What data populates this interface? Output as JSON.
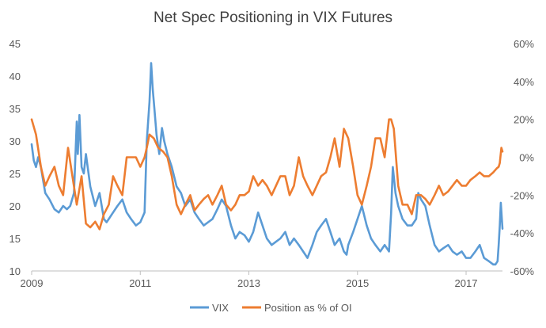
{
  "chart_data": {
    "type": "line",
    "title": "Net Spec Positioning in VIX Futures",
    "x_ticks": [
      "2009",
      "2011",
      "2013",
      "2015",
      "2017"
    ],
    "xlim": [
      2009.0,
      2017.67
    ],
    "y_left": {
      "ticks": [
        "45",
        "40",
        "35",
        "30",
        "25",
        "20",
        "15",
        "10"
      ],
      "ylim": [
        10,
        45
      ]
    },
    "y_right": {
      "ticks": [
        "60%",
        "40%",
        "20%",
        "0%",
        "-20%",
        "-40%",
        "-60%"
      ],
      "ylim": [
        -60,
        60
      ]
    },
    "grid": false,
    "legend_position": "bottom",
    "colors": {
      "VIX": "#5b9bd5",
      "Position as % of OI": "#ed7d31"
    },
    "series": [
      {
        "name": "VIX",
        "axis": "left",
        "x": [
          2009.0,
          2009.04,
          2009.08,
          2009.12,
          2009.17,
          2009.21,
          2009.25,
          2009.33,
          2009.42,
          2009.5,
          2009.58,
          2009.65,
          2009.71,
          2009.78,
          2009.83,
          2009.85,
          2009.88,
          2009.92,
          2009.96,
          2010.0,
          2010.08,
          2010.17,
          2010.25,
          2010.33,
          2010.38,
          2010.42,
          2010.5,
          2010.58,
          2010.67,
          2010.75,
          2010.83,
          2010.92,
          2011.0,
          2011.08,
          2011.12,
          2011.17,
          2011.2,
          2011.23,
          2011.26,
          2011.3,
          2011.35,
          2011.4,
          2011.44,
          2011.5,
          2011.58,
          2011.67,
          2011.75,
          2011.83,
          2011.92,
          2012.0,
          2012.08,
          2012.17,
          2012.25,
          2012.33,
          2012.42,
          2012.5,
          2012.58,
          2012.67,
          2012.75,
          2012.83,
          2012.92,
          2013.0,
          2013.08,
          2013.17,
          2013.25,
          2013.33,
          2013.42,
          2013.5,
          2013.58,
          2013.67,
          2013.75,
          2013.83,
          2013.92,
          2014.0,
          2014.08,
          2014.17,
          2014.25,
          2014.33,
          2014.42,
          2014.5,
          2014.58,
          2014.67,
          2014.75,
          2014.8,
          2014.83,
          2014.92,
          2015.0,
          2015.08,
          2015.17,
          2015.25,
          2015.33,
          2015.42,
          2015.5,
          2015.58,
          2015.62,
          2015.65,
          2015.7,
          2015.75,
          2015.83,
          2015.92,
          2016.0,
          2016.08,
          2016.12,
          2016.17,
          2016.25,
          2016.33,
          2016.42,
          2016.5,
          2016.58,
          2016.67,
          2016.75,
          2016.83,
          2016.92,
          2017.0,
          2017.08,
          2017.17,
          2017.25,
          2017.33,
          2017.42,
          2017.5,
          2017.54,
          2017.58,
          2017.6,
          2017.62,
          2017.64,
          2017.67
        ],
        "values": [
          29.5,
          27,
          26,
          27.5,
          26,
          24,
          22,
          21,
          19.5,
          19,
          20,
          19.5,
          20,
          22,
          33,
          28,
          34,
          26,
          25,
          28,
          23,
          20,
          22,
          18,
          17.5,
          18,
          19,
          20,
          21,
          19,
          18,
          17,
          17.5,
          19,
          30,
          36,
          42,
          38,
          35,
          31,
          28,
          32,
          30,
          28,
          26,
          23,
          22,
          20,
          21,
          19,
          18,
          17,
          17.5,
          18,
          19.5,
          21,
          20,
          17,
          15,
          16,
          15.5,
          14.5,
          16,
          19,
          17,
          15,
          14,
          14.5,
          15,
          16,
          14,
          15,
          14,
          13,
          12,
          14,
          16,
          17,
          18,
          16,
          14,
          15,
          13,
          12.5,
          14,
          16,
          18,
          20,
          17,
          15,
          14,
          13,
          14,
          13,
          19,
          26,
          22,
          20,
          18,
          17,
          17,
          18,
          22,
          21,
          20,
          17,
          14,
          13,
          13.5,
          14,
          13,
          12.5,
          13,
          12,
          12,
          13,
          14,
          12,
          11.5,
          11,
          11,
          11.5,
          14,
          17,
          20.5,
          16.5
        ]
      },
      {
        "name": "Position as % of OI",
        "axis": "right",
        "x": [
          2009.0,
          2009.08,
          2009.17,
          2009.25,
          2009.33,
          2009.42,
          2009.5,
          2009.58,
          2009.67,
          2009.75,
          2009.83,
          2009.92,
          2010.0,
          2010.08,
          2010.17,
          2010.25,
          2010.33,
          2010.42,
          2010.5,
          2010.58,
          2010.67,
          2010.75,
          2010.83,
          2010.92,
          2011.0,
          2011.08,
          2011.12,
          2011.17,
          2011.25,
          2011.33,
          2011.42,
          2011.5,
          2011.58,
          2011.67,
          2011.75,
          2011.83,
          2011.92,
          2012.0,
          2012.08,
          2012.17,
          2012.25,
          2012.33,
          2012.42,
          2012.5,
          2012.58,
          2012.67,
          2012.75,
          2012.83,
          2012.92,
          2013.0,
          2013.08,
          2013.17,
          2013.25,
          2013.33,
          2013.42,
          2013.5,
          2013.58,
          2013.67,
          2013.75,
          2013.83,
          2013.92,
          2014.0,
          2014.08,
          2014.17,
          2014.25,
          2014.33,
          2014.42,
          2014.5,
          2014.58,
          2014.67,
          2014.75,
          2014.83,
          2014.92,
          2015.0,
          2015.08,
          2015.17,
          2015.25,
          2015.33,
          2015.42,
          2015.5,
          2015.58,
          2015.62,
          2015.67,
          2015.75,
          2015.83,
          2015.92,
          2016.0,
          2016.08,
          2016.17,
          2016.25,
          2016.33,
          2016.42,
          2016.5,
          2016.58,
          2016.67,
          2016.75,
          2016.83,
          2016.92,
          2017.0,
          2017.08,
          2017.17,
          2017.25,
          2017.33,
          2017.42,
          2017.5,
          2017.56,
          2017.6,
          2017.62,
          2017.65,
          2017.67
        ],
        "values": [
          20,
          12,
          -5,
          -15,
          -10,
          -5,
          -15,
          -20,
          5,
          -10,
          -25,
          -10,
          -35,
          -37,
          -34,
          -38,
          -30,
          -25,
          -10,
          -15,
          -20,
          0,
          0,
          0,
          -5,
          0,
          5,
          12,
          10,
          5,
          3,
          0,
          -10,
          -25,
          -30,
          -25,
          -20,
          -28,
          -25,
          -22,
          -20,
          -25,
          -20,
          -15,
          -25,
          -28,
          -25,
          -20,
          -20,
          -18,
          -10,
          -15,
          -12,
          -15,
          -20,
          -15,
          -10,
          -10,
          -20,
          -15,
          0,
          -10,
          -15,
          -20,
          -15,
          -10,
          -8,
          0,
          10,
          -5,
          15,
          10,
          -5,
          -20,
          -25,
          -15,
          -5,
          10,
          10,
          0,
          20,
          20,
          15,
          -15,
          -25,
          -25,
          -30,
          -20,
          -20,
          -22,
          -25,
          -20,
          -15,
          -20,
          -18,
          -15,
          -12,
          -15,
          -15,
          -12,
          -10,
          -8,
          -10,
          -10,
          -8,
          -6,
          -5,
          -3,
          5,
          3
        ]
      }
    ]
  }
}
